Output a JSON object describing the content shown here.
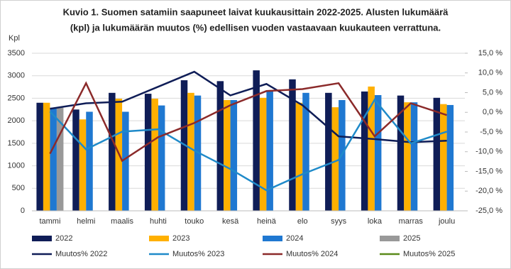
{
  "chart_data": {
    "type": "bar_line",
    "title": [
      "Kuvio  1. Suomen satamiin saapuneet laivat kuukausittain 2022-2025.  Alusten lukumäärä",
      "(kpl) ja lukumäärän muutos (%) edellisen vuoden vastaavaan kuukauteen verrattuna."
    ],
    "ylabel": "Kpl",
    "categories": [
      "tammi",
      "helmi",
      "maalis",
      "huhti",
      "touko",
      "kesä",
      "heinä",
      "elo",
      "syys",
      "loka",
      "marras",
      "joulu"
    ],
    "ylim": [
      0,
      3500
    ],
    "yticks": [
      0,
      500,
      1000,
      1500,
      2000,
      2500,
      3000,
      3500
    ],
    "y2lim": [
      -25,
      15
    ],
    "y2ticks": [
      {
        "value": 15,
        "label": "15,0 %"
      },
      {
        "value": 10,
        "label": "10,0 %"
      },
      {
        "value": 5,
        "label": "5,0 %"
      },
      {
        "value": 0,
        "label": "0,0 %"
      },
      {
        "value": -5,
        "label": "-5,0 %"
      },
      {
        "value": -10,
        "label": "-10,0 %"
      },
      {
        "value": -15,
        "label": "-15,0 %"
      },
      {
        "value": -20,
        "label": "-20,0 %"
      },
      {
        "value": -25,
        "label": "-25,0 %"
      }
    ],
    "grid": true,
    "series": [
      {
        "name": "2022",
        "type": "bar",
        "color": "#0f1d57",
        "values": [
          2400,
          2250,
          2620,
          2600,
          2900,
          2880,
          3120,
          2920,
          2620,
          2650,
          2560,
          2510
        ]
      },
      {
        "name": "2023",
        "type": "bar",
        "color": "#ffb000",
        "values": [
          2400,
          2030,
          2490,
          2490,
          2620,
          2460,
          2510,
          2400,
          2300,
          2760,
          2410,
          2370
        ]
      },
      {
        "name": "2024",
        "type": "bar",
        "color": "#1f78d1",
        "values": [
          2290,
          2200,
          2200,
          2340,
          2560,
          2460,
          2650,
          2620,
          2460,
          2570,
          2410,
          2350
        ]
      },
      {
        "name": "2025",
        "type": "bar",
        "color": "#999999",
        "values": [
          2290,
          null,
          null,
          null,
          null,
          null,
          null,
          null,
          null,
          null,
          null,
          null
        ]
      },
      {
        "name": "Muutos% 2022",
        "type": "line",
        "axis": "y2",
        "color": "#0f1d57",
        "values": [
          0.9,
          2.3,
          2.7,
          6.5,
          10.3,
          4.3,
          7.2,
          1.8,
          -6.1,
          -6.8,
          -7.6,
          -7.2
        ]
      },
      {
        "name": "Muutos% 2023",
        "type": "line",
        "axis": "y2",
        "color": "#1f8ac9",
        "values": [
          0.2,
          -9.4,
          -4.9,
          -4.3,
          -9.7,
          -14.4,
          -19.8,
          -15.7,
          -12.1,
          3.2,
          -7.9,
          -4.9
        ]
      },
      {
        "name": "Muutos% 2024",
        "type": "line",
        "axis": "y2",
        "color": "#8b2a2a",
        "values": [
          -10.5,
          7.4,
          -12.3,
          -6.3,
          -2.7,
          1.8,
          5.4,
          5.9,
          7.4,
          -6.1,
          2.3,
          -0.7
        ]
      },
      {
        "name": "Muutos% 2025",
        "type": "line",
        "axis": "y2",
        "color": "#5a8a1a",
        "values": [
          null,
          null,
          null,
          null,
          null,
          null,
          null,
          null,
          null,
          null,
          null,
          null
        ]
      }
    ]
  }
}
